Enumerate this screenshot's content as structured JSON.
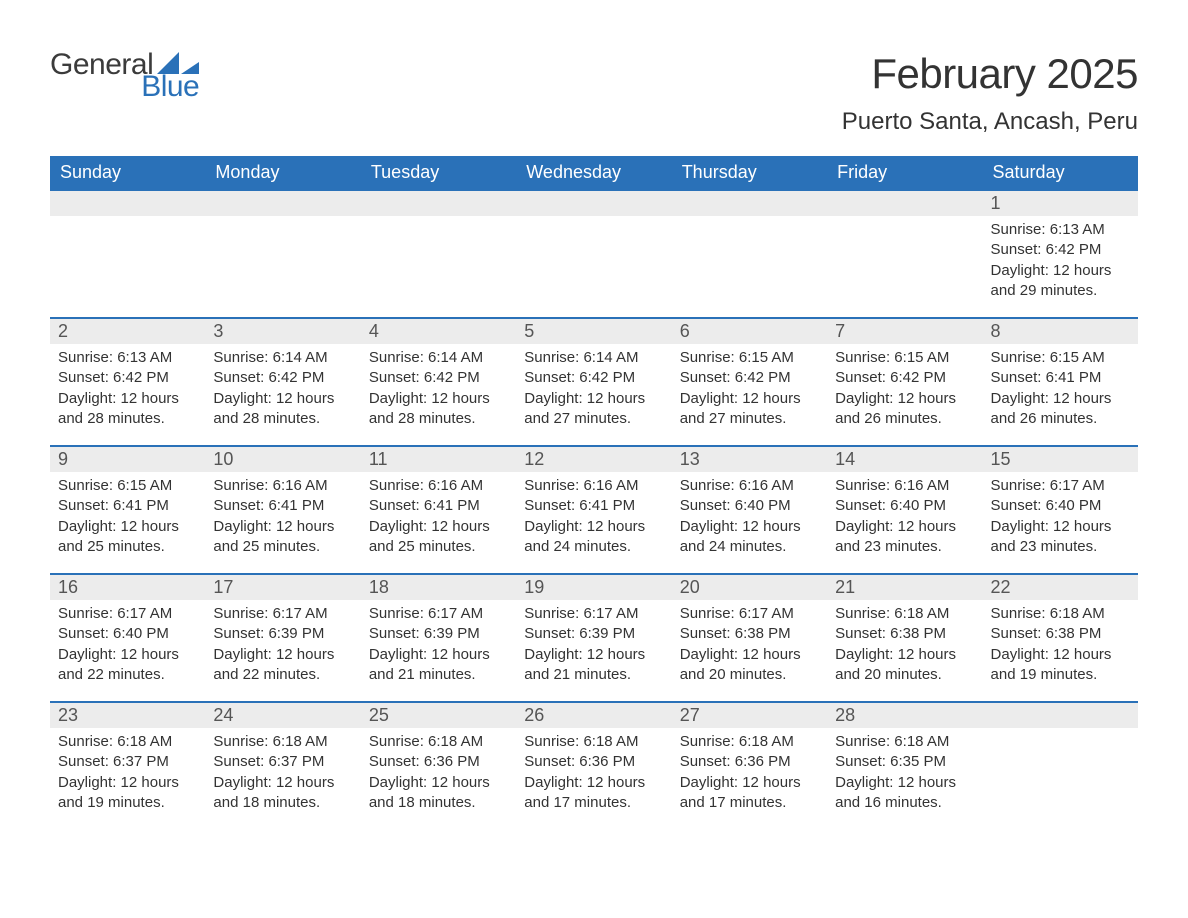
{
  "logo": {
    "text_general": "General",
    "text_blue": "Blue",
    "brand_color": "#2a71b8",
    "text_color": "#3b3b3b"
  },
  "header": {
    "title": "February 2025",
    "location": "Puerto Santa, Ancash, Peru"
  },
  "colors": {
    "header_bg": "#2a71b8",
    "header_text": "#ffffff",
    "daynum_bg": "#ececec",
    "daynum_text": "#555555",
    "body_text": "#333333",
    "row_border": "#2a71b8",
    "page_bg": "#ffffff"
  },
  "typography": {
    "title_fontsize": 42,
    "location_fontsize": 24,
    "day_header_fontsize": 18,
    "daynum_fontsize": 18,
    "body_fontsize": 15,
    "logo_fontsize": 30
  },
  "calendar": {
    "type": "monthly-calendar",
    "day_headers": [
      "Sunday",
      "Monday",
      "Tuesday",
      "Wednesday",
      "Thursday",
      "Friday",
      "Saturday"
    ],
    "start_day_index": 6,
    "num_days": 28,
    "weeks": [
      [
        null,
        null,
        null,
        null,
        null,
        null,
        {
          "n": "1",
          "sunrise": "Sunrise: 6:13 AM",
          "sunset": "Sunset: 6:42 PM",
          "daylight": "Daylight: 12 hours and 29 minutes."
        }
      ],
      [
        {
          "n": "2",
          "sunrise": "Sunrise: 6:13 AM",
          "sunset": "Sunset: 6:42 PM",
          "daylight": "Daylight: 12 hours and 28 minutes."
        },
        {
          "n": "3",
          "sunrise": "Sunrise: 6:14 AM",
          "sunset": "Sunset: 6:42 PM",
          "daylight": "Daylight: 12 hours and 28 minutes."
        },
        {
          "n": "4",
          "sunrise": "Sunrise: 6:14 AM",
          "sunset": "Sunset: 6:42 PM",
          "daylight": "Daylight: 12 hours and 28 minutes."
        },
        {
          "n": "5",
          "sunrise": "Sunrise: 6:14 AM",
          "sunset": "Sunset: 6:42 PM",
          "daylight": "Daylight: 12 hours and 27 minutes."
        },
        {
          "n": "6",
          "sunrise": "Sunrise: 6:15 AM",
          "sunset": "Sunset: 6:42 PM",
          "daylight": "Daylight: 12 hours and 27 minutes."
        },
        {
          "n": "7",
          "sunrise": "Sunrise: 6:15 AM",
          "sunset": "Sunset: 6:42 PM",
          "daylight": "Daylight: 12 hours and 26 minutes."
        },
        {
          "n": "8",
          "sunrise": "Sunrise: 6:15 AM",
          "sunset": "Sunset: 6:41 PM",
          "daylight": "Daylight: 12 hours and 26 minutes."
        }
      ],
      [
        {
          "n": "9",
          "sunrise": "Sunrise: 6:15 AM",
          "sunset": "Sunset: 6:41 PM",
          "daylight": "Daylight: 12 hours and 25 minutes."
        },
        {
          "n": "10",
          "sunrise": "Sunrise: 6:16 AM",
          "sunset": "Sunset: 6:41 PM",
          "daylight": "Daylight: 12 hours and 25 minutes."
        },
        {
          "n": "11",
          "sunrise": "Sunrise: 6:16 AM",
          "sunset": "Sunset: 6:41 PM",
          "daylight": "Daylight: 12 hours and 25 minutes."
        },
        {
          "n": "12",
          "sunrise": "Sunrise: 6:16 AM",
          "sunset": "Sunset: 6:41 PM",
          "daylight": "Daylight: 12 hours and 24 minutes."
        },
        {
          "n": "13",
          "sunrise": "Sunrise: 6:16 AM",
          "sunset": "Sunset: 6:40 PM",
          "daylight": "Daylight: 12 hours and 24 minutes."
        },
        {
          "n": "14",
          "sunrise": "Sunrise: 6:16 AM",
          "sunset": "Sunset: 6:40 PM",
          "daylight": "Daylight: 12 hours and 23 minutes."
        },
        {
          "n": "15",
          "sunrise": "Sunrise: 6:17 AM",
          "sunset": "Sunset: 6:40 PM",
          "daylight": "Daylight: 12 hours and 23 minutes."
        }
      ],
      [
        {
          "n": "16",
          "sunrise": "Sunrise: 6:17 AM",
          "sunset": "Sunset: 6:40 PM",
          "daylight": "Daylight: 12 hours and 22 minutes."
        },
        {
          "n": "17",
          "sunrise": "Sunrise: 6:17 AM",
          "sunset": "Sunset: 6:39 PM",
          "daylight": "Daylight: 12 hours and 22 minutes."
        },
        {
          "n": "18",
          "sunrise": "Sunrise: 6:17 AM",
          "sunset": "Sunset: 6:39 PM",
          "daylight": "Daylight: 12 hours and 21 minutes."
        },
        {
          "n": "19",
          "sunrise": "Sunrise: 6:17 AM",
          "sunset": "Sunset: 6:39 PM",
          "daylight": "Daylight: 12 hours and 21 minutes."
        },
        {
          "n": "20",
          "sunrise": "Sunrise: 6:17 AM",
          "sunset": "Sunset: 6:38 PM",
          "daylight": "Daylight: 12 hours and 20 minutes."
        },
        {
          "n": "21",
          "sunrise": "Sunrise: 6:18 AM",
          "sunset": "Sunset: 6:38 PM",
          "daylight": "Daylight: 12 hours and 20 minutes."
        },
        {
          "n": "22",
          "sunrise": "Sunrise: 6:18 AM",
          "sunset": "Sunset: 6:38 PM",
          "daylight": "Daylight: 12 hours and 19 minutes."
        }
      ],
      [
        {
          "n": "23",
          "sunrise": "Sunrise: 6:18 AM",
          "sunset": "Sunset: 6:37 PM",
          "daylight": "Daylight: 12 hours and 19 minutes."
        },
        {
          "n": "24",
          "sunrise": "Sunrise: 6:18 AM",
          "sunset": "Sunset: 6:37 PM",
          "daylight": "Daylight: 12 hours and 18 minutes."
        },
        {
          "n": "25",
          "sunrise": "Sunrise: 6:18 AM",
          "sunset": "Sunset: 6:36 PM",
          "daylight": "Daylight: 12 hours and 18 minutes."
        },
        {
          "n": "26",
          "sunrise": "Sunrise: 6:18 AM",
          "sunset": "Sunset: 6:36 PM",
          "daylight": "Daylight: 12 hours and 17 minutes."
        },
        {
          "n": "27",
          "sunrise": "Sunrise: 6:18 AM",
          "sunset": "Sunset: 6:36 PM",
          "daylight": "Daylight: 12 hours and 17 minutes."
        },
        {
          "n": "28",
          "sunrise": "Sunrise: 6:18 AM",
          "sunset": "Sunset: 6:35 PM",
          "daylight": "Daylight: 12 hours and 16 minutes."
        },
        null
      ]
    ]
  }
}
